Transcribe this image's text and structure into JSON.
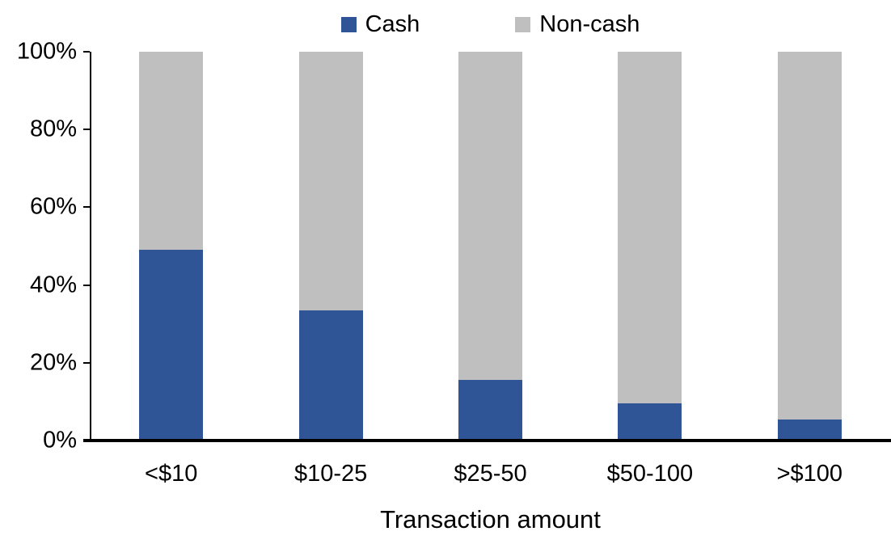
{
  "colors": {
    "cash": "#2F5597",
    "non_cash": "#BFBFBF",
    "axis": "#000000",
    "zero_gridline": "#D9D9D9",
    "background": "#FFFFFF",
    "text": "#000000"
  },
  "legend": {
    "position": "top-center",
    "items": [
      {
        "label": "Cash",
        "color": "#2F5597"
      },
      {
        "label": "Non-cash",
        "color": "#BFBFBF"
      }
    ]
  },
  "chart_data": {
    "type": "bar",
    "stacked": true,
    "stacked_to_100_percent": true,
    "title": "",
    "xlabel": "Transaction amount",
    "ylabel": "",
    "ylim": [
      0,
      100
    ],
    "yticks": [
      "0%",
      "20%",
      "40%",
      "60%",
      "80%",
      "100%"
    ],
    "grid": false,
    "legend_position": "top",
    "categories": [
      "<$10",
      "$10-25",
      "$25-50",
      "$50-100",
      ">$100"
    ],
    "series": [
      {
        "name": "Cash",
        "color": "#2F5597",
        "values": [
          49,
          33.5,
          15.5,
          9.5,
          5.5
        ]
      },
      {
        "name": "Non-cash",
        "color": "#BFBFBF",
        "values": [
          51,
          66.5,
          84.5,
          90.5,
          94.5
        ]
      }
    ]
  }
}
